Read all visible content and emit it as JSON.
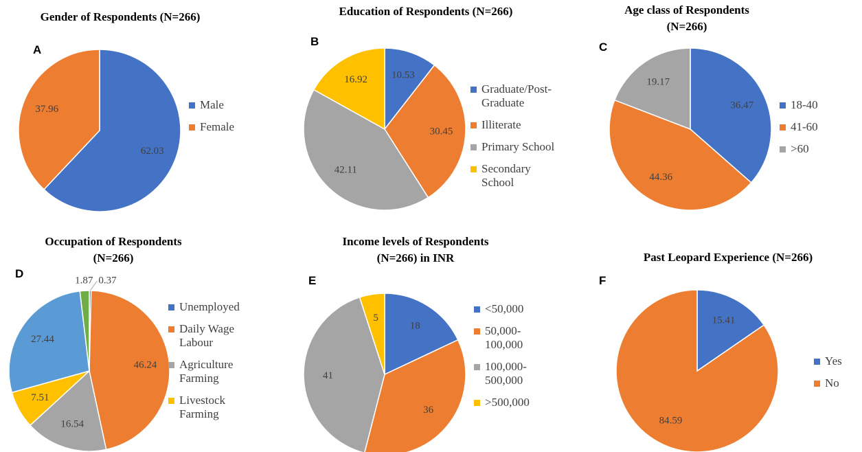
{
  "chart_data": [
    {
      "type": "pie",
      "letter": "A",
      "title": [
        "Gender of Respondents (N=266)"
      ],
      "categories": [
        "Male",
        "Female"
      ],
      "values": [
        62.03,
        37.96
      ],
      "colors": [
        "#4472c4",
        "#ed7d31"
      ]
    },
    {
      "type": "pie",
      "letter": "B",
      "title": [
        "Education of Respondents (N=266)"
      ],
      "categories": [
        "Graduate/Post-Graduate",
        "Illiterate",
        "Primary School",
        "Secondary School"
      ],
      "values": [
        10.53,
        30.45,
        42.11,
        16.92
      ],
      "colors": [
        "#4472c4",
        "#ed7d31",
        "#a5a5a5",
        "#ffc000"
      ]
    },
    {
      "type": "pie",
      "letter": "C",
      "title": [
        "Age class of Respondents",
        "(N=266)"
      ],
      "categories": [
        "18-40",
        "41-60",
        ">60"
      ],
      "values": [
        36.47,
        44.36,
        19.17
      ],
      "colors": [
        "#4472c4",
        "#ed7d31",
        "#a5a5a5"
      ]
    },
    {
      "type": "pie",
      "letter": "D",
      "title": [
        "Occupation of Respondents",
        "(N=266)"
      ],
      "categories": [
        "Unemployed",
        "Daily Wage Labour",
        "Agriculture Farming",
        "Livestock Farming",
        null,
        null
      ],
      "values": [
        0.37,
        46.24,
        16.54,
        7.51,
        27.44,
        1.87
      ],
      "colors": [
        "#4472c4",
        "#ed7d31",
        "#a5a5a5",
        "#ffc000",
        "#5b9bd5",
        "#70ad47"
      ]
    },
    {
      "type": "pie",
      "letter": "E",
      "title": [
        "Income levels of Respondents",
        "(N=266) in INR"
      ],
      "categories": [
        "<50,000",
        "50,000-100,000",
        "100,000-500,000",
        ">500,000"
      ],
      "values": [
        18,
        36,
        41,
        5
      ],
      "colors": [
        "#4472c4",
        "#ed7d31",
        "#a5a5a5",
        "#ffc000"
      ]
    },
    {
      "type": "pie",
      "letter": "F",
      "title": [
        "Past Leopard Experience (N=266)"
      ],
      "categories": [
        "Yes",
        "No"
      ],
      "values": [
        15.41,
        84.59
      ],
      "colors": [
        "#4472c4",
        "#ed7d31"
      ]
    }
  ]
}
